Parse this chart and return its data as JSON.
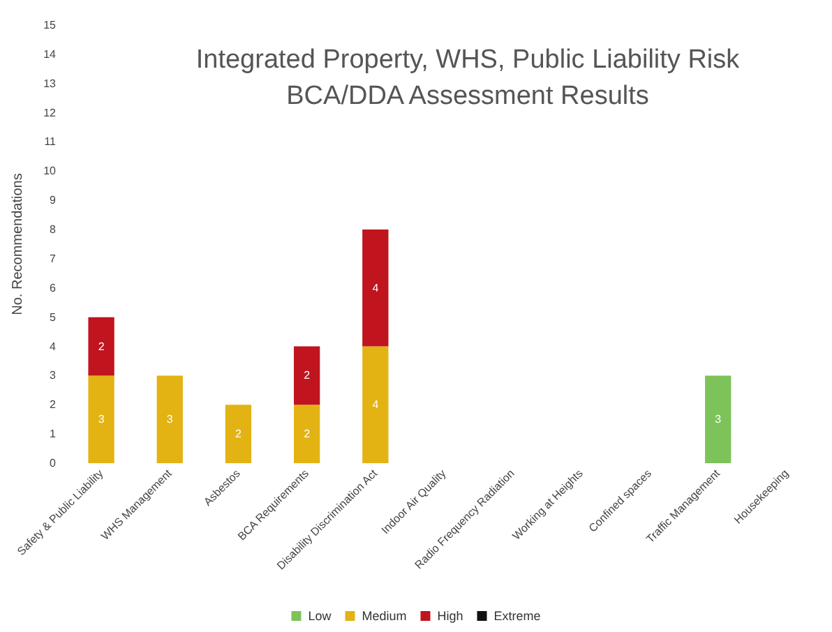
{
  "chart_data": {
    "type": "bar",
    "title": "Integrated Property, WHS, Public Liability Risk\nBCA/DDA Assessment Results",
    "ylabel": "No. Recommendations",
    "categories": [
      "Safety & Public Liability",
      "WHS Management",
      "Asbestos",
      "BCA Requirements",
      "Disability Discrimination Act",
      "Indoor Air Quality",
      "Radio Frequency Radiation",
      "Working at Heights",
      "Confined spaces",
      "Traffic Management",
      "Housekeeping"
    ],
    "series": [
      {
        "name": "Low",
        "color": "#7dc35a",
        "values": [
          null,
          null,
          null,
          null,
          null,
          null,
          null,
          null,
          null,
          3,
          null
        ]
      },
      {
        "name": "Medium",
        "color": "#e3b314",
        "values": [
          3,
          3,
          2,
          2,
          4,
          null,
          null,
          null,
          null,
          null,
          null
        ]
      },
      {
        "name": "High",
        "color": "#c0141e",
        "values": [
          2,
          null,
          null,
          2,
          4,
          null,
          null,
          null,
          null,
          null,
          null
        ]
      },
      {
        "name": "Extreme",
        "color": "#111111",
        "values": [
          null,
          null,
          null,
          null,
          null,
          null,
          null,
          null,
          null,
          null,
          null
        ]
      }
    ],
    "stacked": true,
    "data_labels": true,
    "ylim": [
      0,
      15
    ],
    "yticks": [
      0,
      1,
      2,
      3,
      4,
      5,
      6,
      7,
      8,
      9,
      10,
      11,
      12,
      13,
      14,
      15
    ],
    "grid": false,
    "legend": "bottom"
  }
}
